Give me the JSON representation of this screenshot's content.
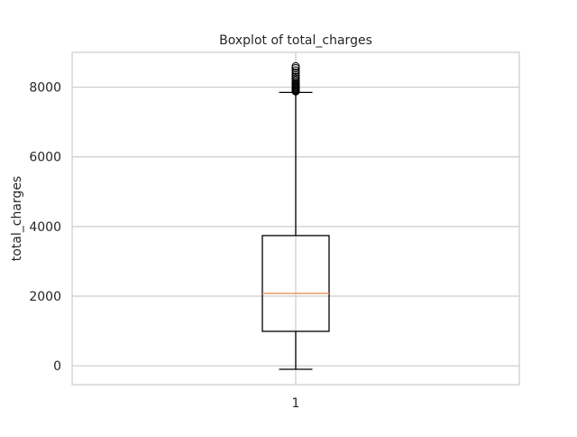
{
  "chart_data": {
    "type": "boxplot",
    "title": "Boxplot of total_charges",
    "xlabel": "",
    "ylabel": "total_charges",
    "categories": [
      "1"
    ],
    "y_ticks": [
      0,
      2000,
      4000,
      6000,
      8000
    ],
    "ylim": [
      -540,
      9000
    ],
    "grid": true,
    "boxes": [
      {
        "category": "1",
        "whisker_low": -100,
        "q1": 990,
        "median": 2080,
        "q3": 3740,
        "whisker_high": 7850,
        "outliers": [
          7880,
          7900,
          7920,
          7950,
          7980,
          8000,
          8020,
          8050,
          8080,
          8110,
          8150,
          8200,
          8250,
          8300,
          8350,
          8420,
          8480,
          8550,
          8600
        ]
      }
    ],
    "colors": {
      "median": "#f28e5b",
      "box": "#000000",
      "grid": "#cccccc",
      "frame": "#cccccc"
    }
  }
}
